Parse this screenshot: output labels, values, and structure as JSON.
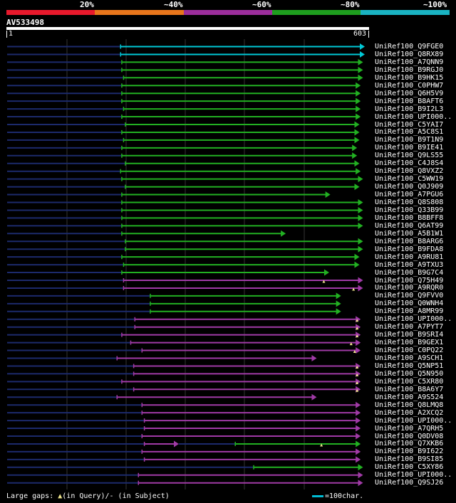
{
  "legend": {
    "labels": [
      "20%",
      "~40%",
      "~60%",
      "~80%",
      "~100%"
    ],
    "colors": [
      "#e8192c",
      "#e8761c",
      "#9b2d9b",
      "#1e9e1e",
      "#1ab3c2"
    ]
  },
  "query": {
    "name": "AV533498",
    "start": "1",
    "end": "603",
    "length": 603
  },
  "colors": {
    "cyan": "#00c8d6",
    "green": "#22b022",
    "purple": "#a03aa6",
    "navy": "#1c2a6c",
    "gap": "#f0e68c"
  },
  "hits": [
    {
      "name": "UniRef100_Q9FGE0",
      "color": "cyan",
      "start": 192,
      "end": 603,
      "qstart": 1
    },
    {
      "name": "UniRef100_Q8RX89",
      "color": "cyan",
      "start": 192,
      "end": 603,
      "qstart": 1
    },
    {
      "name": "UniRef100_A7QNN9",
      "color": "green",
      "start": 194,
      "end": 600,
      "qstart": 1
    },
    {
      "name": "UniRef100_B9RGJ0",
      "color": "green",
      "start": 194,
      "end": 600,
      "qstart": 1
    },
    {
      "name": "UniRef100_B9HK15",
      "color": "green",
      "start": 197,
      "end": 600,
      "qstart": 1
    },
    {
      "name": "UniRef100_C0PHW7",
      "color": "green",
      "start": 194,
      "end": 596,
      "qstart": 1
    },
    {
      "name": "UniRef100_Q6H5V9",
      "color": "green",
      "start": 194,
      "end": 596,
      "qstart": 1
    },
    {
      "name": "UniRef100_B8AFT6",
      "color": "green",
      "start": 194,
      "end": 596,
      "qstart": 1
    },
    {
      "name": "UniRef100_B9I2L3",
      "color": "green",
      "start": 197,
      "end": 596,
      "qstart": 1
    },
    {
      "name": "UniRef100_UPI000..",
      "color": "green",
      "start": 194,
      "end": 596,
      "qstart": 1
    },
    {
      "name": "UniRef100_C5YAI7",
      "color": "green",
      "start": 200,
      "end": 594,
      "qstart": 1
    },
    {
      "name": "UniRef100_A5C8S1",
      "color": "green",
      "start": 194,
      "end": 594,
      "qstart": 1
    },
    {
      "name": "UniRef100_B9T1N9",
      "color": "green",
      "start": 197,
      "end": 594,
      "qstart": 1
    },
    {
      "name": "UniRef100_B9IE41",
      "color": "green",
      "start": 194,
      "end": 590,
      "qstart": 1
    },
    {
      "name": "UniRef100_Q9LS55",
      "color": "green",
      "start": 194,
      "end": 590,
      "qstart": 1
    },
    {
      "name": "UniRef100_C4J8S4",
      "color": "green",
      "start": 200,
      "end": 594,
      "qstart": 1
    },
    {
      "name": "UniRef100_Q8VXZ2",
      "color": "green",
      "start": 192,
      "end": 596,
      "qstart": 1
    },
    {
      "name": "UniRef100_C5WW19",
      "color": "green",
      "start": 194,
      "end": 600,
      "qstart": 1
    },
    {
      "name": "UniRef100_Q0J909",
      "color": "green",
      "start": 200,
      "end": 594,
      "qstart": 1
    },
    {
      "name": "UniRef100_A7PGU6",
      "color": "green",
      "start": 194,
      "end": 545,
      "qstart": 1
    },
    {
      "name": "UniRef100_Q8S808",
      "color": "green",
      "start": 194,
      "end": 600,
      "qstart": 1
    },
    {
      "name": "UniRef100_Q33B99",
      "color": "green",
      "start": 194,
      "end": 600,
      "qstart": 1
    },
    {
      "name": "UniRef100_B8BFF8",
      "color": "green",
      "start": 194,
      "end": 600,
      "qstart": 1
    },
    {
      "name": "UniRef100_Q6AT99",
      "color": "green",
      "start": 194,
      "end": 600,
      "qstart": 1
    },
    {
      "name": "UniRef100_A5B1W1",
      "color": "green",
      "start": 194,
      "end": 470,
      "qstart": 1
    },
    {
      "name": "UniRef100_B8ARG6",
      "color": "green",
      "start": 200,
      "end": 600,
      "qstart": 1
    },
    {
      "name": "UniRef100_B9FDA8",
      "color": "green",
      "start": 200,
      "end": 600,
      "qstart": 1
    },
    {
      "name": "UniRef100_A9RU81",
      "color": "green",
      "start": 194,
      "end": 594,
      "qstart": 1
    },
    {
      "name": "UniRef100_A9TXU3",
      "color": "green",
      "start": 197,
      "end": 594,
      "qstart": 1
    },
    {
      "name": "UniRef100_B9G7C4",
      "color": "green",
      "start": 194,
      "end": 543,
      "qstart": 1
    },
    {
      "name": "UniRef100_Q75H49",
      "color": "purple",
      "start": 197,
      "end": 600,
      "qstart": 1,
      "gap": 534
    },
    {
      "name": "UniRef100_A9RQR0",
      "color": "purple",
      "start": 197,
      "end": 600,
      "qstart": 1,
      "gap": 584
    },
    {
      "name": "UniRef100_Q9FVV0",
      "color": "green",
      "start": 242,
      "end": 563,
      "qstart": 1
    },
    {
      "name": "UniRef100_Q0WNH4",
      "color": "green",
      "start": 242,
      "end": 563,
      "qstart": 1
    },
    {
      "name": "UniRef100_A8MR99",
      "color": "green",
      "start": 242,
      "end": 563,
      "qstart": 1
    },
    {
      "name": "UniRef100_UPI000..",
      "color": "purple",
      "start": 216,
      "end": 596,
      "qstart": 1,
      "gap": 590
    },
    {
      "name": "UniRef100_A7PYT7",
      "color": "purple",
      "start": 216,
      "end": 596,
      "qstart": 1,
      "gap": 590
    },
    {
      "name": "UniRef100_B9SRI4",
      "color": "purple",
      "start": 194,
      "end": 596,
      "qstart": 1,
      "gap": 590
    },
    {
      "name": "UniRef100_B9GEX1",
      "color": "purple",
      "start": 209,
      "end": 596,
      "qstart": 1,
      "gap": 580
    },
    {
      "name": "UniRef100_C0PQ22",
      "color": "purple",
      "start": 228,
      "end": 596,
      "qstart": 1,
      "gap": 586
    },
    {
      "name": "UniRef100_A9SCH1",
      "color": "purple",
      "start": 186,
      "end": 522,
      "qstart": 1
    },
    {
      "name": "UniRef100_Q5NP51",
      "color": "purple",
      "start": 214,
      "end": 596,
      "qstart": 1,
      "gap": 590
    },
    {
      "name": "UniRef100_Q5N950",
      "color": "purple",
      "start": 214,
      "end": 596,
      "qstart": 1,
      "gap": 590
    },
    {
      "name": "UniRef100_C5XR80",
      "color": "purple",
      "start": 194,
      "end": 596,
      "qstart": 1,
      "gap": 590
    },
    {
      "name": "UniRef100_B8A6Y7",
      "color": "purple",
      "start": 214,
      "end": 596,
      "qstart": 1,
      "gap": 590
    },
    {
      "name": "UniRef100_A9S524",
      "color": "purple",
      "start": 186,
      "end": 522,
      "qstart": 1
    },
    {
      "name": "UniRef100_Q8LMQ8",
      "color": "purple",
      "start": 228,
      "end": 596,
      "qstart": 1
    },
    {
      "name": "UniRef100_A2XCQ2",
      "color": "purple",
      "start": 228,
      "end": 596,
      "qstart": 1
    },
    {
      "name": "UniRef100_UPI000..",
      "color": "purple",
      "start": 232,
      "end": 596,
      "qstart": 1
    },
    {
      "name": "UniRef100_A7QRH5",
      "color": "purple",
      "start": 232,
      "end": 596,
      "qstart": 1
    },
    {
      "name": "UniRef100_Q0DV08",
      "color": "purple",
      "start": 228,
      "end": 596,
      "qstart": 1
    },
    {
      "name": "UniRef100_Q7XKB6",
      "color": "purple",
      "start": 232,
      "end": 290,
      "qstart": 1,
      "seg2": {
        "color": "green",
        "start": 385,
        "end": 596
      },
      "gap": 530
    },
    {
      "name": "UniRef100_B9I622",
      "color": "purple",
      "start": 228,
      "end": 596,
      "qstart": 1
    },
    {
      "name": "UniRef100_B9SI85",
      "color": "purple",
      "start": 232,
      "end": 596,
      "qstart": 1
    },
    {
      "name": "UniRef100_C5XY86",
      "color": "green",
      "start": 416,
      "end": 600,
      "qstart": 1
    },
    {
      "name": "UniRef100_UPI000..",
      "color": "purple",
      "start": 222,
      "end": 600,
      "qstart": 1
    },
    {
      "name": "UniRef100_Q9SJ26",
      "color": "purple",
      "start": 222,
      "end": 600,
      "qstart": 1
    }
  ],
  "footer": {
    "gaps_label": "Large gaps: ",
    "gaps_query": "(in Query)",
    "gaps_subject": "/- (in Subject)",
    "scale_label": "=100char."
  }
}
